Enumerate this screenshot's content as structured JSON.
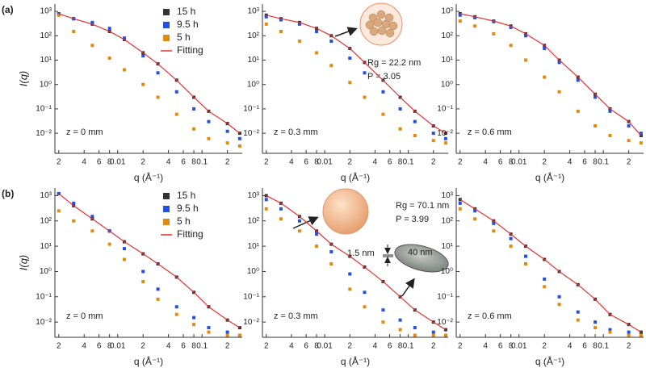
{
  "chart_data": [
    {
      "type": "scatter",
      "panel_label": "(a)",
      "xlabel": "q (Å⁻¹)",
      "ylabel": "I(q)",
      "note": "z = 0 mm",
      "log_x": true,
      "log_y": true,
      "legend": "top",
      "x": [
        0.002,
        0.003,
        0.005,
        0.008,
        0.012,
        0.02,
        0.03,
        0.05,
        0.08,
        0.12,
        0.2,
        0.28
      ],
      "series": [
        {
          "name": "15 h",
          "color": "#333333",
          "values": [
            800,
            500,
            300,
            150,
            70,
            20,
            7,
            1.5,
            0.3,
            0.08,
            0.025,
            0.01
          ]
        },
        {
          "name": "9.5 h",
          "color": "#2450e0",
          "values": [
            800,
            500,
            350,
            200,
            80,
            15,
            3,
            0.5,
            0.1,
            0.03,
            0.012,
            0.006
          ]
        },
        {
          "name": "5 h",
          "color": "#e08a10",
          "values": [
            700,
            150,
            40,
            12,
            4,
            1,
            0.3,
            0.06,
            0.015,
            0.006,
            0.004,
            0.003
          ]
        },
        {
          "name": "Fitting",
          "color": "#e83030",
          "line": true,
          "values": [
            800,
            500,
            300,
            150,
            70,
            20,
            7,
            1.5,
            0.3,
            0.08,
            0.025,
            0.01
          ]
        }
      ],
      "xlim": [
        0.0018,
        0.3
      ],
      "ylim": [
        0.0015,
        2000
      ],
      "xticks": [
        {
          "value": 0.002,
          "label": "2"
        },
        {
          "value": 0.004,
          "label": "4"
        },
        {
          "value": 0.006,
          "label": "6"
        },
        {
          "value": 0.008,
          "label": "8"
        },
        0.01,
        {
          "value": 0.02,
          "label": "2"
        },
        {
          "value": 0.04,
          "label": "4"
        },
        {
          "value": 0.06,
          "label": "6"
        },
        {
          "value": 0.08,
          "label": "8"
        },
        0.1,
        {
          "value": 0.2,
          "label": "2"
        }
      ],
      "yticks": [
        {
          "value": 1000,
          "label": "10³"
        },
        {
          "value": 100,
          "label": "10²"
        },
        {
          "value": 10,
          "label": "10¹"
        },
        {
          "value": 1,
          "label": "10⁰"
        },
        {
          "value": 0.1,
          "label": "10⁻¹"
        },
        {
          "value": 0.01,
          "label": "10⁻²"
        }
      ]
    },
    {
      "type": "scatter",
      "xlabel": "q (Å⁻¹)",
      "note": "z = 0.3 mm",
      "annotations": [
        "Rg = 22.2 nm",
        "P = 3.05"
      ],
      "log_x": true,
      "log_y": true,
      "x": [
        0.002,
        0.003,
        0.005,
        0.008,
        0.012,
        0.02,
        0.03,
        0.05,
        0.08,
        0.12,
        0.2,
        0.28
      ],
      "series": [
        {
          "name": "15 h",
          "color": "#333333",
          "values": [
            700,
            500,
            350,
            200,
            100,
            30,
            8,
            1.5,
            0.3,
            0.08,
            0.02,
            0.01
          ]
        },
        {
          "name": "9.5 h",
          "color": "#2450e0",
          "values": [
            600,
            450,
            300,
            150,
            60,
            12,
            3,
            0.5,
            0.1,
            0.03,
            0.01,
            0.006
          ]
        },
        {
          "name": "5 h",
          "color": "#e08a10",
          "values": [
            300,
            150,
            60,
            20,
            6,
            1.2,
            0.3,
            0.06,
            0.015,
            0.008,
            0.005,
            0.004
          ]
        },
        {
          "name": "Fitting",
          "color": "#e83030",
          "line": true,
          "values": [
            700,
            500,
            350,
            200,
            100,
            30,
            8,
            1.5,
            0.3,
            0.08,
            0.02,
            0.01
          ]
        }
      ],
      "xlim": [
        0.0018,
        0.3
      ],
      "ylim": [
        0.0015,
        2000
      ],
      "xticks": [
        {
          "value": 0.002,
          "label": "2"
        },
        {
          "value": 0.004,
          "label": "4"
        },
        {
          "value": 0.006,
          "label": "6"
        },
        {
          "value": 0.008,
          "label": "8"
        },
        0.01,
        {
          "value": 0.02,
          "label": "2"
        },
        {
          "value": 0.04,
          "label": "4"
        },
        {
          "value": 0.06,
          "label": "6"
        },
        {
          "value": 0.08,
          "label": "8"
        },
        0.1,
        {
          "value": 0.2,
          "label": "2"
        }
      ],
      "yticks": [
        {
          "value": 1000,
          "label": "10³"
        },
        {
          "value": 100,
          "label": "10²"
        },
        {
          "value": 10,
          "label": "10¹"
        },
        {
          "value": 1,
          "label": "10⁰"
        },
        {
          "value": 0.1,
          "label": "10⁻¹"
        },
        {
          "value": 0.01,
          "label": "10⁻²"
        }
      ]
    },
    {
      "type": "scatter",
      "xlabel": "q (Å⁻¹)",
      "note": "z = 0.6 mm",
      "log_x": true,
      "log_y": true,
      "x": [
        0.002,
        0.003,
        0.005,
        0.008,
        0.012,
        0.02,
        0.03,
        0.05,
        0.08,
        0.12,
        0.2,
        0.28
      ],
      "series": [
        {
          "name": "15 h",
          "color": "#333333",
          "values": [
            800,
            600,
            400,
            250,
            120,
            40,
            10,
            2,
            0.4,
            0.1,
            0.03,
            0.008
          ]
        },
        {
          "name": "9.5 h",
          "color": "#2450e0",
          "values": [
            700,
            550,
            380,
            220,
            100,
            30,
            8,
            1.5,
            0.3,
            0.08,
            0.02,
            0.01
          ]
        },
        {
          "name": "5 h",
          "color": "#e08a10",
          "values": [
            400,
            250,
            120,
            40,
            10,
            2,
            0.5,
            0.08,
            0.02,
            0.008,
            0.005,
            0.004
          ]
        },
        {
          "name": "Fitting",
          "color": "#e83030",
          "line": true,
          "values": [
            800,
            600,
            400,
            250,
            120,
            40,
            10,
            2,
            0.4,
            0.1,
            0.03,
            0.008
          ]
        }
      ],
      "xlim": [
        0.0018,
        0.3
      ],
      "ylim": [
        0.0015,
        2000
      ],
      "xticks": [
        {
          "value": 0.002,
          "label": "2"
        },
        {
          "value": 0.004,
          "label": "4"
        },
        {
          "value": 0.006,
          "label": "6"
        },
        {
          "value": 0.008,
          "label": "8"
        },
        0.01,
        {
          "value": 0.02,
          "label": "2"
        },
        {
          "value": 0.04,
          "label": "4"
        },
        {
          "value": 0.06,
          "label": "6"
        },
        {
          "value": 0.08,
          "label": "8"
        },
        0.1,
        {
          "value": 0.2,
          "label": "2"
        }
      ],
      "yticks": [
        {
          "value": 1000,
          "label": "10³"
        },
        {
          "value": 100,
          "label": "10²"
        },
        {
          "value": 10,
          "label": "10¹"
        },
        {
          "value": 1,
          "label": "10⁰"
        },
        {
          "value": 0.1,
          "label": "10⁻¹"
        },
        {
          "value": 0.01,
          "label": "10⁻²"
        }
      ]
    },
    {
      "type": "scatter",
      "panel_label": "(b)",
      "xlabel": "q (Å⁻¹)",
      "ylabel": "I(q)",
      "note": "z = 0 mm",
      "log_x": true,
      "log_y": true,
      "legend": "top",
      "x": [
        0.002,
        0.003,
        0.005,
        0.008,
        0.012,
        0.02,
        0.03,
        0.05,
        0.08,
        0.12,
        0.2,
        0.28
      ],
      "series": [
        {
          "name": "15 h",
          "color": "#333333",
          "values": [
            1200,
            400,
            120,
            40,
            15,
            5,
            2,
            0.6,
            0.15,
            0.04,
            0.012,
            0.006
          ]
        },
        {
          "name": "9.5 h",
          "color": "#2450e0",
          "values": [
            1200,
            500,
            150,
            40,
            8,
            1,
            0.2,
            0.04,
            0.015,
            0.006,
            0.004,
            0.003
          ]
        },
        {
          "name": "5 h",
          "color": "#e08a10",
          "values": [
            250,
            100,
            40,
            12,
            3,
            0.4,
            0.08,
            0.02,
            0.008,
            0.004,
            0.003,
            0.003
          ]
        },
        {
          "name": "Fitting",
          "color": "#e83030",
          "line": true,
          "values": [
            1200,
            400,
            120,
            40,
            15,
            5,
            2,
            0.6,
            0.15,
            0.04,
            0.012,
            0.006
          ]
        }
      ],
      "xlim": [
        0.0018,
        0.3
      ],
      "ylim": [
        0.0025,
        2000
      ],
      "xticks": [
        {
          "value": 0.002,
          "label": "2"
        },
        {
          "value": 0.004,
          "label": "4"
        },
        {
          "value": 0.006,
          "label": "6"
        },
        {
          "value": 0.008,
          "label": "8"
        },
        0.01,
        {
          "value": 0.02,
          "label": "2"
        },
        {
          "value": 0.04,
          "label": "4"
        },
        {
          "value": 0.06,
          "label": "6"
        },
        {
          "value": 0.08,
          "label": "8"
        },
        0.1,
        {
          "value": 0.2,
          "label": "2"
        }
      ],
      "yticks": [
        {
          "value": 1000,
          "label": "10³"
        },
        {
          "value": 100,
          "label": "10²"
        },
        {
          "value": 10,
          "label": "10¹"
        },
        {
          "value": 1,
          "label": "10⁰"
        },
        {
          "value": 0.1,
          "label": "10⁻¹"
        },
        {
          "value": 0.01,
          "label": "10⁻²"
        }
      ]
    },
    {
      "type": "scatter",
      "xlabel": "q (Å⁻¹)",
      "note": "z = 0.3 mm",
      "annotations": [
        "Rg = 70.1 nm",
        "P = 3.99",
        "1.5 nm",
        "40 nm"
      ],
      "log_x": true,
      "log_y": true,
      "x": [
        0.002,
        0.003,
        0.005,
        0.008,
        0.012,
        0.02,
        0.03,
        0.05,
        0.08,
        0.12,
        0.2,
        0.28
      ],
      "series": [
        {
          "name": "15 h",
          "color": "#333333",
          "values": [
            1000,
            500,
            150,
            40,
            12,
            4,
            1.5,
            0.4,
            0.1,
            0.03,
            0.01,
            0.005
          ]
        },
        {
          "name": "9.5 h",
          "color": "#2450e0",
          "values": [
            700,
            300,
            100,
            30,
            6,
            0.8,
            0.15,
            0.03,
            0.012,
            0.006,
            0.004,
            0.003
          ]
        },
        {
          "name": "5 h",
          "color": "#e08a10",
          "values": [
            300,
            120,
            40,
            10,
            2,
            0.2,
            0.04,
            0.01,
            0.005,
            0.003,
            0.003,
            0.003
          ]
        },
        {
          "name": "Fitting",
          "color": "#e83030",
          "line": true,
          "values": [
            1000,
            500,
            150,
            40,
            12,
            4,
            1.5,
            0.4,
            0.1,
            0.03,
            0.01,
            0.005
          ]
        }
      ],
      "xlim": [
        0.0018,
        0.3
      ],
      "ylim": [
        0.0025,
        2000
      ],
      "xticks": [
        {
          "value": 0.002,
          "label": "2"
        },
        {
          "value": 0.004,
          "label": "4"
        },
        {
          "value": 0.006,
          "label": "6"
        },
        {
          "value": 0.008,
          "label": "8"
        },
        0.01,
        {
          "value": 0.02,
          "label": "2"
        },
        {
          "value": 0.04,
          "label": "4"
        },
        {
          "value": 0.06,
          "label": "6"
        },
        {
          "value": 0.08,
          "label": "8"
        },
        0.1,
        {
          "value": 0.2,
          "label": "2"
        }
      ],
      "yticks": [
        {
          "value": 1000,
          "label": "10³"
        },
        {
          "value": 100,
          "label": "10²"
        },
        {
          "value": 10,
          "label": "10¹"
        },
        {
          "value": 1,
          "label": "10⁰"
        },
        {
          "value": 0.1,
          "label": "10⁻¹"
        },
        {
          "value": 0.01,
          "label": "10⁻²"
        }
      ]
    },
    {
      "type": "scatter",
      "xlabel": "q (Å⁻¹)",
      "note": "z = 0.6 mm",
      "log_x": true,
      "log_y": true,
      "x": [
        0.002,
        0.003,
        0.005,
        0.008,
        0.012,
        0.02,
        0.03,
        0.05,
        0.08,
        0.12,
        0.2,
        0.28
      ],
      "series": [
        {
          "name": "15 h",
          "color": "#333333",
          "values": [
            700,
            300,
            100,
            30,
            10,
            3,
            1,
            0.3,
            0.08,
            0.02,
            0.008,
            0.004
          ]
        },
        {
          "name": "9.5 h",
          "color": "#2450e0",
          "values": [
            500,
            250,
            80,
            20,
            4,
            0.5,
            0.1,
            0.025,
            0.01,
            0.005,
            0.004,
            0.003
          ]
        },
        {
          "name": "5 h",
          "color": "#e08a10",
          "values": [
            300,
            120,
            40,
            10,
            2,
            0.25,
            0.05,
            0.012,
            0.006,
            0.004,
            0.003,
            0.003
          ]
        },
        {
          "name": "Fitting",
          "color": "#e83030",
          "line": true,
          "values": [
            700,
            300,
            100,
            30,
            10,
            3,
            1,
            0.3,
            0.08,
            0.02,
            0.008,
            0.004
          ]
        }
      ],
      "xlim": [
        0.0018,
        0.3
      ],
      "ylim": [
        0.0025,
        2000
      ],
      "xticks": [
        {
          "value": 0.002,
          "label": "2"
        },
        {
          "value": 0.004,
          "label": "4"
        },
        {
          "value": 0.006,
          "label": "6"
        },
        {
          "value": 0.008,
          "label": "8"
        },
        0.01,
        {
          "value": 0.02,
          "label": "2"
        },
        {
          "value": 0.04,
          "label": "4"
        },
        {
          "value": 0.06,
          "label": "6"
        },
        {
          "value": 0.08,
          "label": "8"
        },
        0.1,
        {
          "value": 0.2,
          "label": "2"
        }
      ],
      "yticks": [
        {
          "value": 1000,
          "label": "10³"
        },
        {
          "value": 100,
          "label": "10²"
        },
        {
          "value": 10,
          "label": "10¹"
        },
        {
          "value": 1,
          "label": "10⁰"
        },
        {
          "value": 0.1,
          "label": "10⁻¹"
        },
        {
          "value": 0.01,
          "label": "10⁻²"
        }
      ]
    }
  ]
}
